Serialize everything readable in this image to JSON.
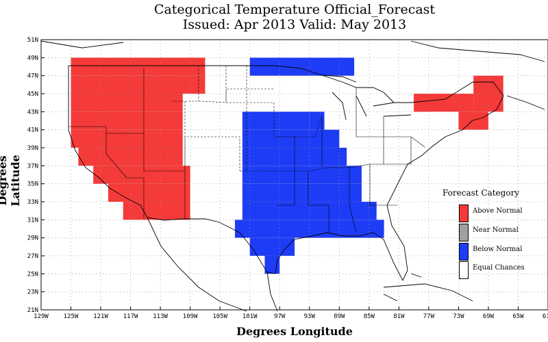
{
  "title_line1": "Categorical Temperature Official_Forecast",
  "title_line2": "Issued: Apr 2013 Valid: May 2013",
  "xlabel": "Degrees Longitude",
  "ylabel": "Degrees Latitude",
  "x_ticks": [
    "129W",
    "125W",
    "121W",
    "117W",
    "113W",
    "109W",
    "105W",
    "101W",
    "97W",
    "93W",
    "89W",
    "85W",
    "81W",
    "77W",
    "73W",
    "69W",
    "65W",
    "61W"
  ],
  "y_ticks": [
    "51N",
    "49N",
    "47N",
    "45N",
    "43N",
    "41N",
    "39N",
    "37N",
    "35N",
    "33N",
    "31N",
    "29N",
    "27N",
    "25N",
    "23N",
    "21N"
  ],
  "legend": {
    "title": "Forecast Category",
    "items": [
      {
        "label": "Above Normal",
        "color": "#f53a3a"
      },
      {
        "label": "Near Normal",
        "color": "#a0a0a0"
      },
      {
        "label": "Below Normal",
        "color": "#1e3cf5"
      },
      {
        "label": "Equal Chances",
        "color": "#ffffff"
      }
    ]
  },
  "map": {
    "lon_range": [
      -129,
      -61
    ],
    "lat_range": [
      21,
      51
    ],
    "grid": "dotted",
    "above_normal_color": "#f53a3a",
    "below_normal_color": "#1e3cf5",
    "above_normal_cells": [
      [
        -125,
        49,
        -107,
        47
      ],
      [
        -125,
        47,
        -107,
        45
      ],
      [
        -125,
        45,
        -110,
        43
      ],
      [
        -125,
        43,
        -110,
        41
      ],
      [
        -125,
        41,
        -110,
        39
      ],
      [
        -124,
        39,
        -110,
        37
      ],
      [
        -122,
        37,
        -109,
        35
      ],
      [
        -120,
        35,
        -109,
        33
      ],
      [
        -118,
        33,
        -109,
        31
      ],
      [
        -79,
        45,
        -71,
        43
      ],
      [
        -71,
        47,
        -67,
        43
      ],
      [
        -73,
        43,
        -69,
        41
      ],
      [
        -77,
        45,
        -79,
        43
      ]
    ],
    "below_normal_cells": [
      [
        -101,
        49,
        -87,
        47
      ],
      [
        -102,
        43,
        -93,
        41
      ],
      [
        -102,
        41,
        -90,
        39
      ],
      [
        -102,
        39,
        -88,
        37
      ],
      [
        -102,
        37,
        -86,
        35
      ],
      [
        -102,
        35,
        -86,
        33
      ],
      [
        -102,
        33,
        -84,
        31
      ],
      [
        -103,
        31,
        -83,
        29
      ],
      [
        -101,
        29,
        -95,
        27
      ],
      [
        -99,
        27,
        -97,
        25
      ],
      [
        -93,
        43,
        -91,
        41
      ],
      [
        -91,
        41,
        -89,
        39
      ]
    ]
  }
}
